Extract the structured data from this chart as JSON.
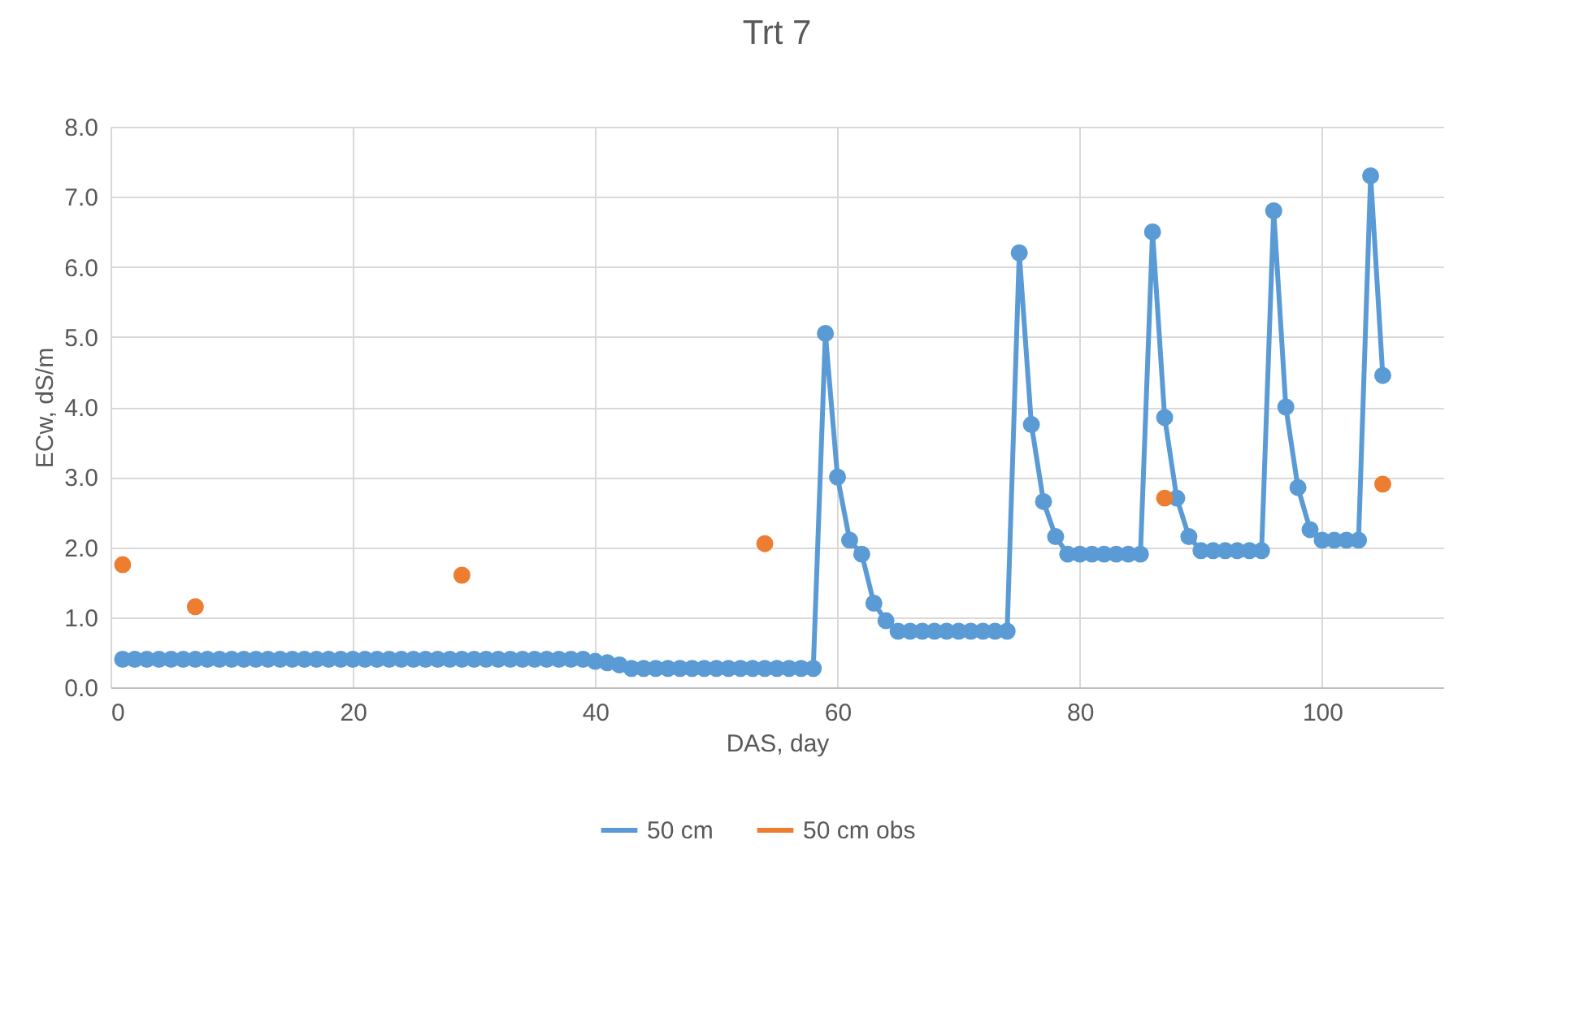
{
  "chart_data": {
    "type": "line",
    "title": "Trt 7",
    "xlabel": "DAS, day",
    "ylabel": "ECw, dS/m",
    "xlim": [
      0,
      110
    ],
    "xticks": [
      0,
      20,
      40,
      60,
      80,
      100
    ],
    "ylim": [
      0,
      8
    ],
    "yticks": [
      {
        "value": 0,
        "label": "0.0"
      },
      {
        "value": 1,
        "label": "1.0"
      },
      {
        "value": 2,
        "label": "2.0"
      },
      {
        "value": 3,
        "label": "3.0"
      },
      {
        "value": 4,
        "label": "4.0"
      },
      {
        "value": 5,
        "label": "5.0"
      },
      {
        "value": 6,
        "label": "6.0"
      },
      {
        "value": 7,
        "label": "7.0"
      },
      {
        "value": 8,
        "label": "8.0"
      }
    ],
    "grid": true,
    "legend": "bottom",
    "marker": "circle",
    "series": [
      {
        "name": "50 cm",
        "color": "#5b9bd5",
        "x": [
          1,
          2,
          3,
          4,
          5,
          6,
          7,
          8,
          9,
          10,
          11,
          12,
          13,
          14,
          15,
          16,
          17,
          18,
          19,
          20,
          21,
          22,
          23,
          24,
          25,
          26,
          27,
          28,
          29,
          30,
          31,
          32,
          33,
          34,
          35,
          36,
          37,
          38,
          39,
          40,
          41,
          42,
          43,
          44,
          45,
          46,
          47,
          48,
          49,
          50,
          51,
          52,
          53,
          54,
          55,
          56,
          57,
          58,
          59,
          60,
          61,
          62,
          63,
          64,
          65,
          66,
          67,
          68,
          69,
          70,
          71,
          72,
          73,
          74,
          75,
          76,
          77,
          78,
          79,
          80,
          81,
          82,
          83,
          84,
          85,
          86,
          87,
          88,
          89,
          90,
          91,
          92,
          93,
          94,
          95,
          96,
          97,
          98,
          99,
          100,
          101,
          102,
          103,
          104,
          105
        ],
        "values": [
          0.4,
          0.4,
          0.4,
          0.4,
          0.4,
          0.4,
          0.4,
          0.4,
          0.4,
          0.4,
          0.4,
          0.4,
          0.4,
          0.4,
          0.4,
          0.4,
          0.4,
          0.4,
          0.4,
          0.4,
          0.4,
          0.4,
          0.4,
          0.4,
          0.4,
          0.4,
          0.4,
          0.4,
          0.4,
          0.4,
          0.4,
          0.4,
          0.4,
          0.4,
          0.4,
          0.4,
          0.4,
          0.4,
          0.4,
          0.37,
          0.35,
          0.32,
          0.27,
          0.27,
          0.27,
          0.27,
          0.27,
          0.27,
          0.27,
          0.27,
          0.27,
          0.27,
          0.27,
          0.27,
          0.27,
          0.27,
          0.27,
          0.27,
          5.05,
          3.0,
          2.1,
          1.9,
          1.2,
          0.95,
          0.8,
          0.8,
          0.8,
          0.8,
          0.8,
          0.8,
          0.8,
          0.8,
          0.8,
          0.8,
          6.2,
          3.75,
          2.65,
          2.15,
          1.9,
          1.9,
          1.9,
          1.9,
          1.9,
          1.9,
          1.9,
          6.5,
          3.85,
          2.7,
          2.15,
          1.95,
          1.95,
          1.95,
          1.95,
          1.95,
          1.95,
          6.8,
          4.0,
          2.85,
          2.25,
          2.1,
          2.1,
          2.1,
          2.1,
          7.3,
          4.45
        ]
      },
      {
        "name": "50 cm obs",
        "type": "scatter",
        "color": "#ed7d31",
        "x": [
          1,
          7,
          29,
          54,
          87,
          105
        ],
        "values": [
          1.75,
          1.15,
          1.6,
          2.05,
          2.7,
          2.9
        ]
      }
    ]
  }
}
